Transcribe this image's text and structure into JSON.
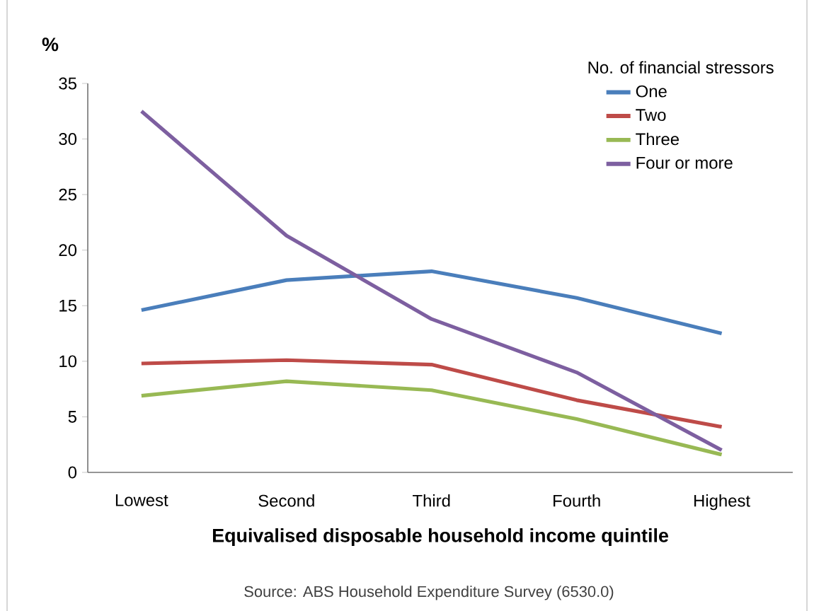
{
  "chart_data": {
    "type": "line",
    "ylabel": "%",
    "xlabel": "Equivalised disposable household income quintile",
    "annotations": [
      "Source: ABS Household Expenditure Survey  (6530.0)"
    ],
    "legend_title": "No. of financial stressors",
    "legend": "top right",
    "marker": "none",
    "line_style": "solid",
    "grid": false,
    "categories": [
      "Lowest",
      "Second",
      "Third",
      "Fourth",
      "Highest"
    ],
    "ylim": [
      0,
      35
    ],
    "yticks": [
      0,
      5,
      10,
      15,
      20,
      25,
      30,
      35
    ],
    "series": [
      {
        "name": "One",
        "color": "#4a7ebb",
        "values": [
          14.6,
          17.3,
          18.1,
          15.7,
          12.5
        ]
      },
      {
        "name": "Two",
        "color": "#be4b48",
        "values": [
          9.8,
          10.1,
          9.7,
          6.5,
          4.1
        ]
      },
      {
        "name": "Three",
        "color": "#98b954",
        "values": [
          6.9,
          8.2,
          7.4,
          4.8,
          1.6
        ]
      },
      {
        "name": "Four or more",
        "color": "#7d5fa0",
        "values": [
          32.5,
          21.3,
          13.8,
          9.0,
          2.0
        ]
      }
    ]
  }
}
